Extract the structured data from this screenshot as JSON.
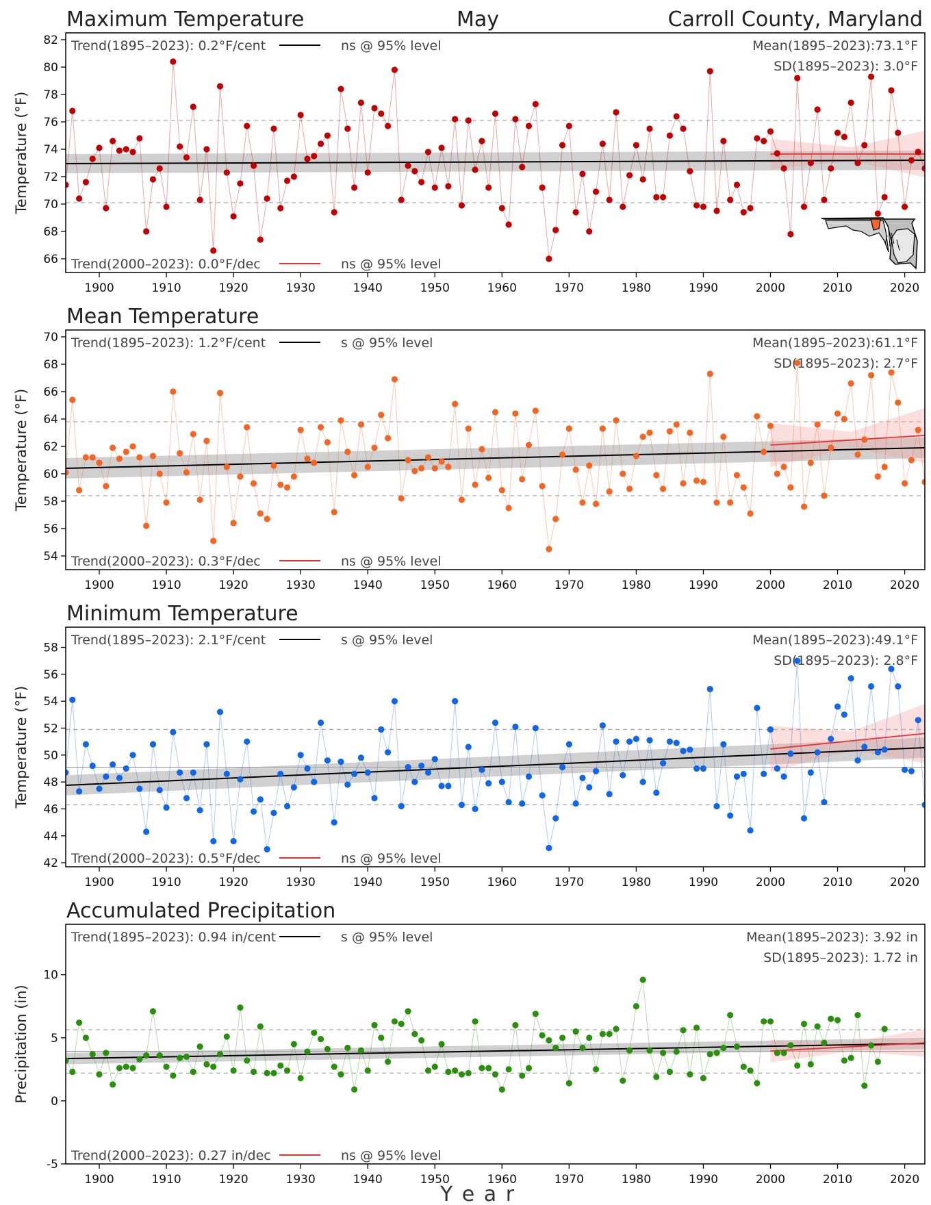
{
  "header": {
    "left": "Maximum Temperature",
    "center": "May",
    "right": "Carroll County, Maryland"
  },
  "xlabel": "Y      e      a      r",
  "colors": {
    "max": "#c00000",
    "mean": "#f26522",
    "min": "#1166e8",
    "precip": "#2b8f0e",
    "trend_long": "#000000",
    "trend_recent": "#e83030"
  },
  "locator_map": "maryland-map-icon",
  "chart_data": [
    {
      "type": "scatter",
      "title": "Maximum Temperature",
      "ylabel": "Temperature (°F)",
      "xlim": [
        1895,
        2023
      ],
      "ylim": [
        65,
        82.5
      ],
      "yticks": [
        66,
        68,
        70,
        72,
        74,
        76,
        78,
        80,
        82
      ],
      "xticks": [
        1900,
        1910,
        1920,
        1930,
        1940,
        1950,
        1960,
        1970,
        1980,
        1990,
        2000,
        2010,
        2020
      ],
      "trend_long_label": "Trend(1895–2023):  0.2°F/cent",
      "trend_long_sig": "ns @ 95% level",
      "trend_recent_label": "Trend(2000–2023):  0.0°F/dec",
      "trend_recent_sig": "ns @ 95% level",
      "mean_label": "Mean(1895–2023):73.1°F",
      "sd_label": "SD(1895–2023): 3.0°F",
      "mean": 73.1,
      "sd": 3.0,
      "trend_long": [
        [
          1895,
          72.95
        ],
        [
          2023,
          73.2
        ]
      ],
      "trend_recent": [
        [
          2000,
          73.65
        ],
        [
          2023,
          73.65
        ]
      ],
      "band_long": 0.7,
      "band_recent": [
        [
          2000,
          1.1
        ],
        [
          2012,
          0.5
        ],
        [
          2023,
          1.7
        ]
      ],
      "x_start": 1895,
      "values": [
        71.4,
        76.8,
        70.4,
        71.6,
        73.3,
        74.1,
        69.7,
        74.6,
        73.9,
        74.0,
        73.8,
        74.8,
        68.0,
        71.8,
        72.6,
        69.8,
        80.4,
        74.2,
        73.4,
        77.1,
        70.3,
        74.0,
        66.6,
        78.6,
        72.3,
        69.1,
        71.5,
        75.7,
        72.8,
        67.4,
        70.4,
        75.5,
        69.7,
        71.7,
        72.0,
        76.5,
        73.3,
        73.5,
        74.4,
        75.0,
        69.4,
        78.4,
        75.5,
        71.2,
        77.4,
        72.3,
        77.0,
        76.6,
        75.7,
        79.8,
        70.3,
        72.8,
        72.4,
        71.6,
        73.8,
        71.2,
        74.1,
        71.3,
        76.2,
        69.9,
        76.1,
        72.5,
        74.6,
        71.2,
        76.6,
        69.7,
        68.5,
        76.2,
        72.7,
        75.7,
        77.3,
        71.2,
        66.0,
        68.1,
        74.3,
        75.7,
        69.4,
        72.2,
        68.0,
        70.9,
        74.4,
        70.3,
        76.7,
        69.8,
        72.1,
        74.3,
        71.8,
        75.5,
        70.5,
        70.5,
        75.0,
        76.4,
        75.5,
        72.4,
        69.9,
        69.8,
        79.7,
        69.5,
        74.6,
        70.3,
        71.4,
        69.4,
        69.7,
        74.8,
        74.6,
        75.3,
        73.7,
        72.6,
        67.8,
        79.2,
        69.8,
        73.0,
        76.9,
        70.3,
        72.6,
        75.2,
        74.9,
        77.4,
        73.0,
        74.3,
        79.3,
        69.3,
        70.5,
        78.3,
        75.2,
        69.8,
        73.2,
        73.8,
        72.6
      ]
    },
    {
      "type": "scatter",
      "title": "Mean Temperature",
      "ylabel": "Temperature (°F)",
      "xlim": [
        1895,
        2023
      ],
      "ylim": [
        53,
        70.5
      ],
      "yticks": [
        54,
        56,
        58,
        60,
        62,
        64,
        66,
        68,
        70
      ],
      "xticks": [
        1900,
        1910,
        1920,
        1930,
        1940,
        1950,
        1960,
        1970,
        1980,
        1990,
        2000,
        2010,
        2020
      ],
      "trend_long_label": "Trend(1895–2023):  1.2°F/cent",
      "trend_long_sig": "s @ 95% level",
      "trend_recent_label": "Trend(2000–2023):  0.3°F/dec",
      "trend_recent_sig": "ns @ 95% level",
      "mean_label": "Mean(1895–2023):61.1°F",
      "sd_label": "SD(1895–2023): 2.7°F",
      "mean": 61.1,
      "sd": 2.7,
      "trend_long": [
        [
          1895,
          60.4
        ],
        [
          2023,
          61.9
        ]
      ],
      "trend_recent": [
        [
          2000,
          62.1
        ],
        [
          2023,
          62.8
        ]
      ],
      "band_long": 0.75,
      "band_recent": [
        [
          2000,
          1.6
        ],
        [
          2012,
          0.6
        ],
        [
          2023,
          2.0
        ]
      ],
      "x_start": 1895,
      "values": [
        60.1,
        65.4,
        58.8,
        61.2,
        61.2,
        60.8,
        59.1,
        61.9,
        61.1,
        61.6,
        62.0,
        61.2,
        56.2,
        61.3,
        60.0,
        57.9,
        66.0,
        61.5,
        60.1,
        62.9,
        58.1,
        62.4,
        55.1,
        65.9,
        60.5,
        56.4,
        59.8,
        63.4,
        59.3,
        57.1,
        56.7,
        60.6,
        59.2,
        59.0,
        59.8,
        63.2,
        61.1,
        60.8,
        63.4,
        62.3,
        57.2,
        63.9,
        61.6,
        59.9,
        63.6,
        60.5,
        61.9,
        64.3,
        62.6,
        66.9,
        58.2,
        61.0,
        60.2,
        60.4,
        61.2,
        60.4,
        60.9,
        60.5,
        65.1,
        58.1,
        63.3,
        59.2,
        61.8,
        59.7,
        64.5,
        58.8,
        57.5,
        64.4,
        59.6,
        62.1,
        64.6,
        59.1,
        54.5,
        56.7,
        61.4,
        63.3,
        60.3,
        57.9,
        60.6,
        57.8,
        63.3,
        58.7,
        63.9,
        60.0,
        58.9,
        61.3,
        62.7,
        63.0,
        59.9,
        58.9,
        63.1,
        63.6,
        59.3,
        63.0,
        59.5,
        59.4,
        67.3,
        57.9,
        62.7,
        57.9,
        59.9,
        59.0,
        57.1,
        64.2,
        61.6,
        63.5,
        60.0,
        60.5,
        59.0,
        68.1,
        57.6,
        60.8,
        63.6,
        58.4,
        61.9,
        64.4,
        64.0,
        66.6,
        61.4,
        62.5,
        67.2,
        59.8,
        60.5,
        67.4,
        65.2,
        59.3,
        61.0,
        63.2,
        59.4
      ]
    },
    {
      "type": "scatter",
      "title": "Minimum Temperature",
      "ylabel": "Temperature (°F)",
      "xlim": [
        1895,
        2023
      ],
      "ylim": [
        41.7,
        59.5
      ],
      "yticks": [
        42,
        44,
        46,
        48,
        50,
        52,
        54,
        56,
        58
      ],
      "xticks": [
        1900,
        1910,
        1920,
        1930,
        1940,
        1950,
        1960,
        1970,
        1980,
        1990,
        2000,
        2010,
        2020
      ],
      "trend_long_label": "Trend(1895–2023):  2.1°F/cent",
      "trend_long_sig": "s @ 95% level",
      "trend_recent_label": "Trend(2000–2023):  0.5°F/dec",
      "trend_recent_sig": "ns @ 95% level",
      "mean_label": "Mean(1895–2023):49.1°F",
      "sd_label": "SD(1895–2023): 2.8°F",
      "mean": 49.1,
      "sd": 2.8,
      "trend_long": [
        [
          1895,
          47.75
        ],
        [
          2023,
          50.55
        ]
      ],
      "trend_recent": [
        [
          2000,
          50.45
        ],
        [
          2023,
          51.6
        ]
      ],
      "band_long": 0.75,
      "band_recent": [
        [
          2000,
          1.7
        ],
        [
          2012,
          0.7
        ],
        [
          2023,
          2.2
        ]
      ],
      "x_start": 1895,
      "values": [
        48.7,
        54.1,
        47.3,
        50.8,
        49.2,
        47.5,
        48.4,
        49.3,
        48.3,
        49.0,
        50.0,
        47.5,
        44.3,
        50.8,
        47.4,
        46.1,
        51.7,
        48.7,
        46.8,
        48.7,
        45.9,
        50.8,
        43.6,
        53.2,
        48.6,
        43.6,
        48.2,
        51.0,
        45.8,
        46.7,
        43.0,
        45.7,
        48.6,
        46.2,
        47.6,
        50.0,
        49.0,
        48.0,
        52.4,
        49.6,
        45.0,
        49.5,
        47.8,
        48.6,
        49.8,
        48.7,
        46.8,
        51.9,
        50.2,
        54.0,
        46.2,
        49.1,
        48.0,
        49.2,
        48.7,
        49.7,
        47.7,
        47.7,
        54.0,
        46.3,
        50.6,
        46.0,
        48.9,
        47.9,
        52.4,
        48.0,
        46.5,
        52.1,
        46.4,
        48.4,
        52.0,
        47.0,
        43.1,
        45.3,
        49.1,
        50.8,
        46.4,
        48.3,
        47.6,
        48.8,
        52.2,
        47.1,
        51.0,
        48.5,
        51.0,
        51.2,
        48.0,
        51.1,
        47.2,
        49.4,
        51.0,
        50.9,
        50.3,
        50.4,
        49.0,
        49.0,
        54.9,
        46.2,
        50.8,
        45.5,
        48.4,
        48.6,
        44.4,
        53.5,
        48.6,
        51.9,
        49.0,
        48.4,
        50.1,
        57.0,
        45.3,
        48.7,
        50.2,
        46.5,
        51.2,
        53.6,
        53.0,
        55.7,
        49.6,
        50.6,
        55.1,
        50.2,
        50.4,
        56.4,
        55.1,
        48.9,
        48.8,
        52.6,
        46.3
      ]
    },
    {
      "type": "scatter",
      "title": "Accumulated Precipitation",
      "ylabel": "Precipitation (in)",
      "xlim": [
        1895,
        2023
      ],
      "ylim": [
        -5,
        14
      ],
      "yticks": [
        -5,
        0,
        5,
        10
      ],
      "xticks": [
        1900,
        1910,
        1920,
        1930,
        1940,
        1950,
        1960,
        1970,
        1980,
        1990,
        2000,
        2010,
        2020
      ],
      "trend_long_label": "Trend(1895–2023):  0.94 in/cent",
      "trend_long_sig": "s @ 95% level",
      "trend_recent_label": "Trend(2000–2023):  0.27 in/dec",
      "trend_recent_sig": "ns @ 95% level",
      "mean_label": "Mean(1895–2023): 3.92 in",
      "sd_label": "SD(1895–2023): 1.72 in",
      "mean": 3.92,
      "sd": 1.72,
      "trend_long": [
        [
          1895,
          3.35
        ],
        [
          2023,
          4.55
        ]
      ],
      "trend_recent": [
        [
          2000,
          3.95
        ],
        [
          2023,
          4.6
        ]
      ],
      "band_long": 0.45,
      "band_recent": [
        [
          2000,
          0.9
        ],
        [
          2012,
          0.35
        ],
        [
          2023,
          1.1
        ]
      ],
      "x_start": 1895,
      "values": [
        3.2,
        2.3,
        6.2,
        5.0,
        3.7,
        2.1,
        3.8,
        1.3,
        2.6,
        2.7,
        2.6,
        3.3,
        3.6,
        7.1,
        3.6,
        2.7,
        2.0,
        3.4,
        3.5,
        2.3,
        4.3,
        2.9,
        2.7,
        3.7,
        5.1,
        2.4,
        7.4,
        3.2,
        2.3,
        5.9,
        2.2,
        2.2,
        2.8,
        2.4,
        4.5,
        1.8,
        3.9,
        5.4,
        4.9,
        4.1,
        2.7,
        2.1,
        4.2,
        0.9,
        4.0,
        2.4,
        6.0,
        5.0,
        3.1,
        6.3,
        6.1,
        7.1,
        5.3,
        4.8,
        2.4,
        2.7,
        4.5,
        2.3,
        2.4,
        2.1,
        2.2,
        6.3,
        2.6,
        2.6,
        2.1,
        0.9,
        2.5,
        6.0,
        2.0,
        2.6,
        6.9,
        5.2,
        4.8,
        4.2,
        5.0,
        1.4,
        5.5,
        4.2,
        5.0,
        2.5,
        5.3,
        5.3,
        5.7,
        1.6,
        4.0,
        7.5,
        9.6,
        4.0,
        1.9,
        3.8,
        2.3,
        3.9,
        5.6,
        2.1,
        5.8,
        1.8,
        3.7,
        3.8,
        4.2,
        6.8,
        4.3,
        2.7,
        2.4,
        1.4,
        6.3,
        6.3,
        3.8,
        3.8,
        4.4,
        2.8,
        6.1,
        2.9,
        5.9,
        4.6,
        6.5,
        6.4,
        3.2,
        3.4,
        6.8,
        1.2,
        4.4,
        3.1,
        5.7
      ]
    }
  ]
}
